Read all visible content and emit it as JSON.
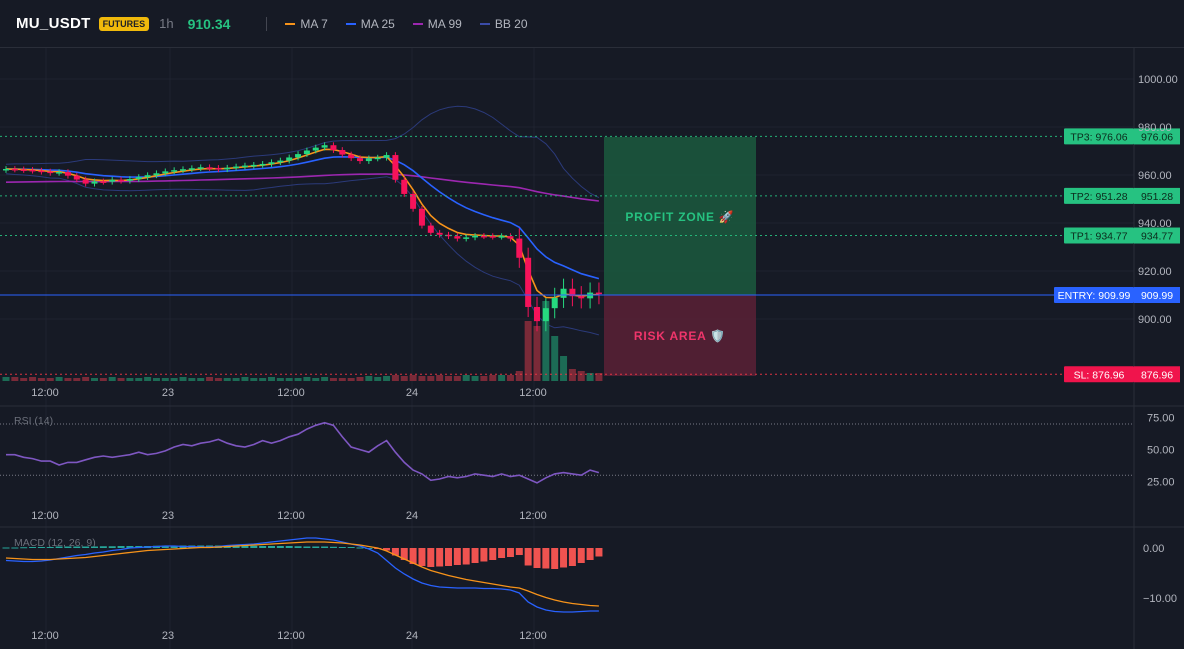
{
  "header": {
    "symbol": "MU_USDT",
    "badge": "FUTURES",
    "timeframe": "1h",
    "price": "910.34",
    "indicators": [
      {
        "label": "MA 7",
        "color": "#f7931a"
      },
      {
        "label": "MA 25",
        "color": "#2962ff"
      },
      {
        "label": "MA 99",
        "color": "#9c27b0"
      },
      {
        "label": "BB 20",
        "color": "#3a4ba8"
      }
    ]
  },
  "chart_data": {
    "type": "candlestick",
    "price_axis": {
      "ticks": [
        900,
        920,
        940,
        960,
        980,
        1000
      ],
      "tick_labels": [
        "900.00",
        "920.00",
        "940.00",
        "960.00",
        "980.00",
        "1000.00"
      ]
    },
    "time_axis": {
      "labels": [
        "12:00",
        "23",
        "12:00",
        "24",
        "12:00"
      ]
    },
    "levels": [
      {
        "id": "tp3",
        "label": "TP3: 976.06",
        "value": 976.06,
        "value_label": "976.06",
        "color": "#26c281"
      },
      {
        "id": "tp2",
        "label": "TP2: 951.28",
        "value": 951.28,
        "value_label": "951.28",
        "color": "#26c281"
      },
      {
        "id": "tp1",
        "label": "TP1: 934.77",
        "value": 934.77,
        "value_label": "934.77",
        "color": "#26c281"
      },
      {
        "id": "entry",
        "label": "ENTRY: 909.99",
        "value": 909.99,
        "value_label": "909.99",
        "color": "#2962ff"
      },
      {
        "id": "sl",
        "label": "SL: 876.96",
        "value": 876.96,
        "value_label": "876.96",
        "color": "#f23645"
      }
    ],
    "zones": {
      "profit": "PROFIT ZONE 🚀",
      "risk": "RISK AREA 🛡️"
    },
    "close_prices": [
      962.5,
      962.3,
      962.1,
      961.8,
      961.4,
      960.9,
      961.2,
      959.7,
      958.1,
      956.4,
      957.3,
      957.2,
      958.0,
      957.6,
      958.3,
      959.1,
      959.9,
      960.7,
      961.5,
      962.0,
      962.4,
      962.8,
      963.2,
      962.9,
      962.4,
      963.0,
      963.5,
      963.9,
      964.2,
      964.6,
      965.3,
      966.0,
      967.3,
      968.7,
      970.2,
      971.4,
      972.4,
      970.4,
      968.5,
      967.0,
      965.8,
      966.9,
      967.2,
      968.3,
      958.0,
      952.1,
      945.9,
      938.9,
      935.9,
      935.1,
      934.5,
      933.5,
      934.0,
      934.6,
      934.5,
      934.3,
      934.5,
      933.5,
      925.5,
      905.0,
      899.1,
      904.5,
      908.8,
      912.6,
      909.5,
      908.6,
      911.0,
      910.34
    ],
    "volumes": [
      4,
      4,
      3,
      4,
      3,
      3,
      4,
      3,
      3,
      4,
      3,
      3,
      4,
      3,
      3,
      3,
      4,
      3,
      3,
      3,
      4,
      3,
      3,
      4,
      3,
      3,
      3,
      4,
      3,
      3,
      4,
      3,
      3,
      3,
      4,
      3,
      4,
      3,
      3,
      3,
      4,
      5,
      4,
      5,
      6,
      5,
      6,
      5,
      5,
      6,
      5,
      5,
      6,
      5,
      5,
      6,
      6,
      6,
      10,
      60,
      55,
      80,
      45,
      25,
      12,
      10,
      8,
      8
    ],
    "rsi": {
      "label": "RSI (14)",
      "ticks": [
        25,
        50,
        75
      ],
      "tick_labels": [
        "25.00",
        "50.00",
        "75.00"
      ],
      "levels": [
        70,
        30
      ],
      "values": [
        46,
        46,
        44,
        43,
        41,
        41,
        38,
        40,
        40,
        42,
        44,
        45,
        44,
        45,
        46,
        48,
        46,
        47,
        49,
        52,
        54,
        53,
        55,
        56,
        58,
        55,
        53,
        52,
        54,
        57,
        55,
        57,
        60,
        62,
        66,
        69,
        71,
        69,
        60,
        52,
        50,
        48,
        53,
        57,
        48,
        40,
        34,
        31,
        26,
        27,
        29,
        28,
        29,
        31,
        30,
        29,
        31,
        29,
        30,
        27,
        24,
        28,
        31,
        32,
        31,
        30,
        34,
        32
      ]
    },
    "macd": {
      "label": "MACD (12, 26, 9)",
      "ticks": [
        0,
        -10
      ],
      "tick_labels": [
        "0.00",
        "−10.00"
      ],
      "histogram": [
        0.1,
        0.1,
        0.15,
        0.2,
        0.2,
        0.2,
        0.3,
        0.3,
        0.3,
        0.3,
        0.3,
        0.35,
        0.35,
        0.4,
        0.4,
        0.4,
        0.4,
        0.45,
        0.45,
        0.45,
        0.5,
        0.5,
        0.5,
        0.5,
        0.5,
        0.5,
        0.45,
        0.45,
        0.45,
        0.4,
        0.4,
        0.4,
        0.4,
        0.35,
        0.3,
        0.3,
        0.3,
        0.25,
        0.2,
        0.2,
        0.1,
        0.0,
        -0.2,
        -0.5,
        -1.5,
        -2.4,
        -3.2,
        -3.6,
        -3.8,
        -3.7,
        -3.6,
        -3.4,
        -3.3,
        -3.0,
        -2.7,
        -2.4,
        -2.0,
        -1.8,
        -1.4,
        -3.5,
        -4.0,
        -4.1,
        -4.2,
        -3.9,
        -3.6,
        -3.0,
        -2.4,
        -1.7
      ],
      "macd_line": [
        -2.5,
        -2.6,
        -2.7,
        -2.7,
        -2.6,
        -2.4,
        -2.1,
        -1.8,
        -1.5,
        -1.3,
        -1.0,
        -0.8,
        -0.5,
        -0.3,
        0.0,
        0.1,
        0.2,
        0.3,
        0.4,
        0.4,
        0.3,
        0.3,
        0.2,
        0.2,
        0.3,
        0.5,
        0.6,
        0.7,
        0.8,
        1.0,
        1.2,
        1.4,
        1.6,
        1.8,
        2.0,
        2.0,
        1.8,
        1.6,
        1.2,
        0.8,
        0.4,
        -0.2,
        -1.0,
        -2.5,
        -4.0,
        -5.2,
        -6.2,
        -7.0,
        -7.5,
        -7.8,
        -7.9,
        -8.0,
        -8.0,
        -8.0,
        -8.1,
        -8.1,
        -8.2,
        -8.4,
        -9.0,
        -10.8,
        -11.8,
        -12.4,
        -12.7,
        -12.8,
        -12.8,
        -12.7,
        -12.6,
        -12.6
      ],
      "signal_line": [
        -2.0,
        -2.1,
        -2.2,
        -2.3,
        -2.3,
        -2.3,
        -2.2,
        -2.1,
        -2.0,
        -1.9,
        -1.7,
        -1.5,
        -1.3,
        -1.1,
        -0.9,
        -0.7,
        -0.5,
        -0.4,
        -0.3,
        -0.2,
        -0.1,
        0.0,
        0.1,
        0.1,
        0.2,
        0.3,
        0.4,
        0.5,
        0.6,
        0.7,
        0.8,
        0.9,
        1.0,
        1.1,
        1.2,
        1.2,
        1.2,
        1.1,
        1.0,
        0.8,
        0.6,
        0.3,
        0.0,
        -0.6,
        -1.4,
        -2.2,
        -3.0,
        -3.8,
        -4.5,
        -5.0,
        -5.5,
        -5.9,
        -6.3,
        -6.6,
        -6.9,
        -7.2,
        -7.5,
        -7.8,
        -8.0,
        -8.6,
        -9.3,
        -9.9,
        -10.4,
        -10.8,
        -11.1,
        -11.3,
        -11.5,
        -11.6
      ]
    }
  }
}
